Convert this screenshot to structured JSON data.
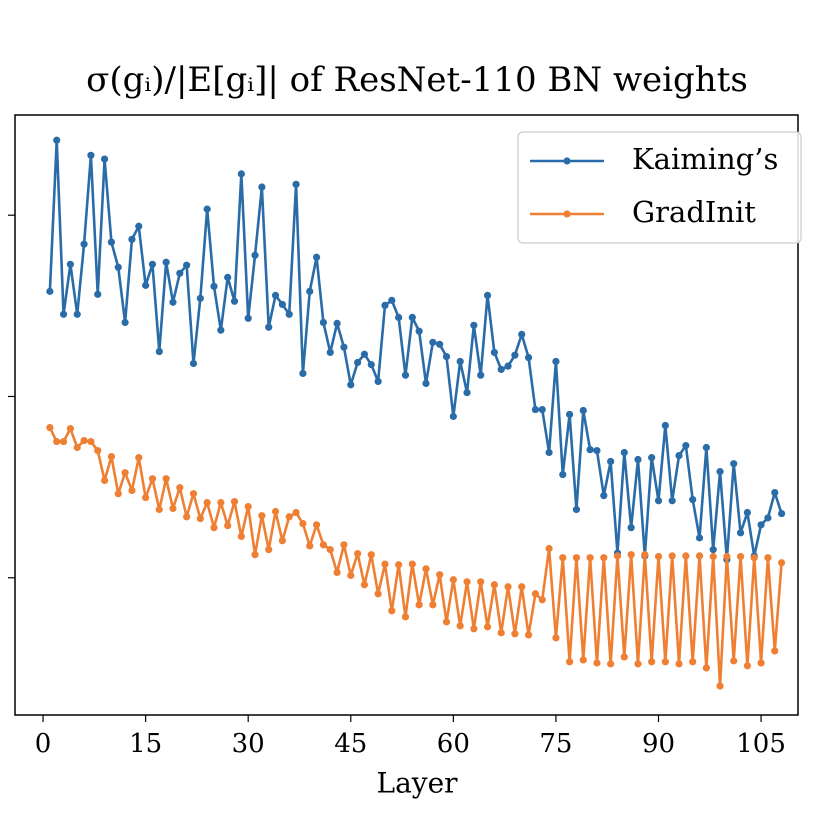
{
  "chart_data": {
    "type": "line",
    "title": "σ(gᵢ)/|E[gᵢ]| of ResNet-110 BN weights",
    "xlabel": "Layer",
    "x": [
      1,
      2,
      3,
      4,
      5,
      6,
      7,
      8,
      9,
      10,
      11,
      12,
      13,
      14,
      15,
      16,
      17,
      18,
      19,
      20,
      21,
      22,
      23,
      24,
      25,
      26,
      27,
      28,
      29,
      30,
      31,
      32,
      33,
      34,
      35,
      36,
      37,
      38,
      39,
      40,
      41,
      42,
      43,
      44,
      45,
      46,
      47,
      48,
      49,
      50,
      51,
      52,
      53,
      54,
      55,
      56,
      57,
      58,
      59,
      60,
      61,
      62,
      63,
      64,
      65,
      66,
      67,
      68,
      69,
      70,
      71,
      72,
      73,
      74,
      75,
      76,
      77,
      78,
      79,
      80,
      81,
      82,
      83,
      84,
      85,
      86,
      87,
      88,
      89,
      90,
      91,
      92,
      93,
      94,
      95,
      96,
      97,
      98,
      99,
      100,
      101,
      102,
      103,
      104,
      105,
      106,
      107,
      108
    ],
    "series": [
      {
        "name": "Kaiming’s",
        "color": "#2a6ca8",
        "values": [
          38.0,
          259,
          28.4,
          53.6,
          28.4,
          69.2,
          214,
          36.6,
          204,
          71.0,
          51.6,
          25.6,
          73.6,
          86.9,
          41.0,
          53.6,
          17.7,
          55.0,
          33.1,
          47.8,
          53.0,
          15.2,
          34.8,
          108,
          40.5,
          23.2,
          45.4,
          33.5,
          169,
          27.0,
          60.1,
          143,
          24.1,
          36.1,
          32.2,
          28.4,
          148,
          13.4,
          38.0,
          58.6,
          25.6,
          17.5,
          25.3,
          18.7,
          11.6,
          15.4,
          17.1,
          15.0,
          12.1,
          31.8,
          33.9,
          27.3,
          13.1,
          27.3,
          22.9,
          11.8,
          19.9,
          19.4,
          16.6,
          7.76,
          15.6,
          10.5,
          24.7,
          13.1,
          36.1,
          17.5,
          14.1,
          14.7,
          16.9,
          22.0,
          16.4,
          8.47,
          8.47,
          4.91,
          15.6,
          3.71,
          7.96,
          2.38,
          8.37,
          5.09,
          5.03,
          2.84,
          4.38,
          1.37,
          4.91,
          1.89,
          4.49,
          1.32,
          4.6,
          2.66,
          6.92,
          2.66,
          4.72,
          5.36,
          2.7,
          1.66,
          5.23,
          1.43,
          3.85,
          1.26,
          4.26,
          1.77,
          2.29,
          1.32,
          1.96,
          2.14,
          2.95,
          2.26
        ]
      },
      {
        "name": "GradInit",
        "color": "#ef7f33",
        "values": [
          6.74,
          5.64,
          5.64,
          6.65,
          5.23,
          5.71,
          5.64,
          5.03,
          3.44,
          4.66,
          2.91,
          3.8,
          3.03,
          4.6,
          2.77,
          3.52,
          2.38,
          3.52,
          2.41,
          3.14,
          2.17,
          2.91,
          2.12,
          2.6,
          1.89,
          2.6,
          1.94,
          2.63,
          1.69,
          2.47,
          1.34,
          2.2,
          1.43,
          2.32,
          1.6,
          2.17,
          2.29,
          1.99,
          1.5,
          1.96,
          1.52,
          1.43,
          1.07,
          1.52,
          1.03,
          1.36,
          0.915,
          1.34,
          0.816,
          1.19,
          0.657,
          1.18,
          0.609,
          1.19,
          0.709,
          1.12,
          0.709,
          1.04,
          0.571,
          0.975,
          0.543,
          0.95,
          0.523,
          0.95,
          0.536,
          0.915,
          0.497,
          0.892,
          0.491,
          0.892,
          0.484,
          0.816,
          0.756,
          1.45,
          0.466,
          1.29,
          0.344,
          1.29,
          0.352,
          1.29,
          0.339,
          1.29,
          0.335,
          1.32,
          0.366,
          1.34,
          0.335,
          1.34,
          0.344,
          1.31,
          0.344,
          1.32,
          0.335,
          1.32,
          0.344,
          1.32,
          0.318,
          1.31,
          0.253,
          1.31,
          0.348,
          1.31,
          0.327,
          1.29,
          0.339,
          1.29,
          0.395,
          1.21
        ]
      }
    ],
    "xlim": [
      -4.1,
      110.4
    ],
    "xticks": [
      0,
      15,
      30,
      45,
      60,
      75,
      90,
      105
    ],
    "ylim": [
      0.175,
      357
    ],
    "yticks": [
      1,
      10,
      100
    ],
    "ylog": true,
    "legend": "upper right"
  }
}
